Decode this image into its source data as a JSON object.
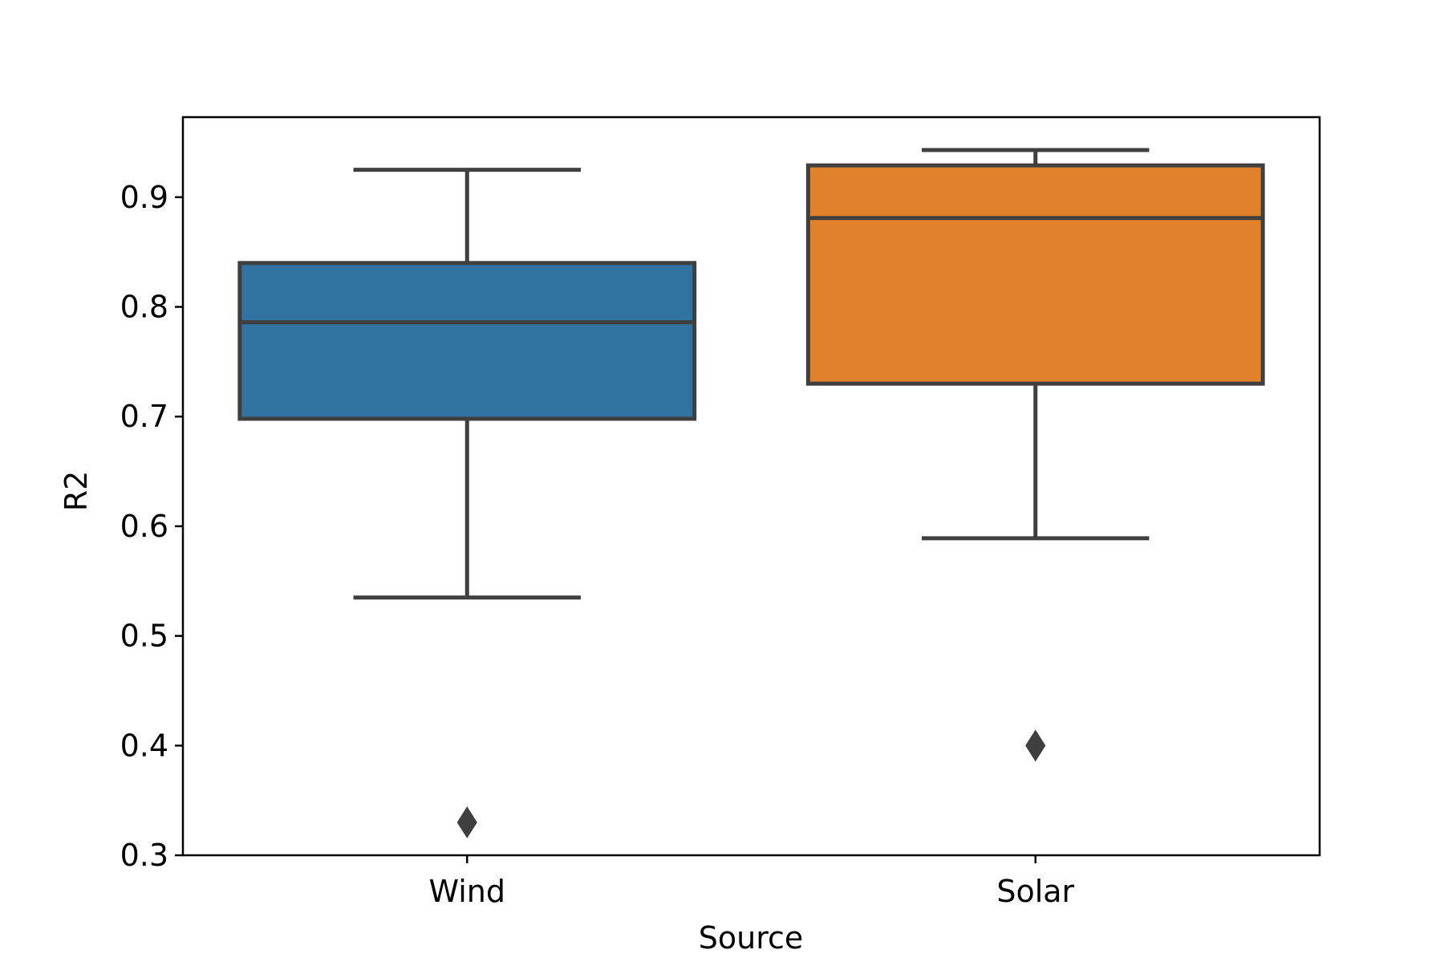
{
  "chart_data": {
    "type": "box",
    "title": "",
    "xlabel": "Source",
    "ylabel": "R2",
    "categories": [
      "Wind",
      "Solar"
    ],
    "ylim": [
      0.3,
      0.973
    ],
    "yticks": [
      "0.3",
      "0.4",
      "0.5",
      "0.6",
      "0.7",
      "0.8",
      "0.9"
    ],
    "grid": false,
    "boxes": [
      {
        "category": "Wind",
        "whisker_low": 0.535,
        "q1": 0.698,
        "median": 0.786,
        "q3": 0.84,
        "whisker_high": 0.925,
        "outliers": [
          0.33
        ],
        "color": "#3274a1"
      },
      {
        "category": "Solar",
        "whisker_low": 0.589,
        "q1": 0.73,
        "median": 0.881,
        "q3": 0.929,
        "whisker_high": 0.943,
        "outliers": [
          0.4
        ],
        "color": "#e1812c"
      }
    ]
  },
  "colors": {
    "box_edge": "#3f3f3f",
    "axes": "#000000"
  }
}
